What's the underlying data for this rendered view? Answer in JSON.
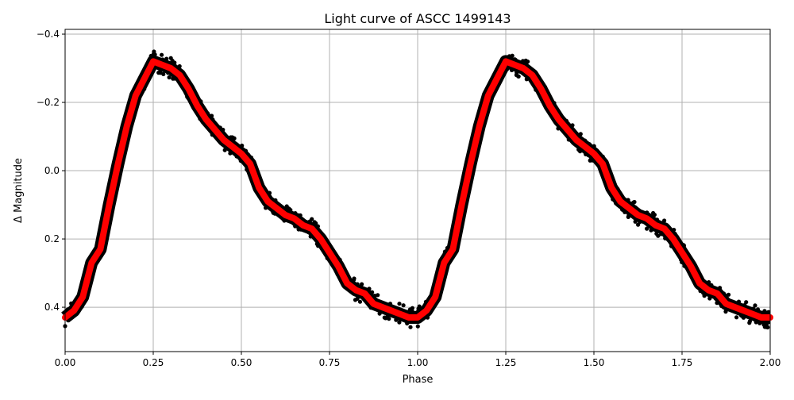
{
  "chart_data": {
    "type": "line",
    "title": "Light curve of ASCC 1499143",
    "xlabel": "Phase",
    "ylabel": "Δ Magnitude",
    "xlim": [
      0,
      2
    ],
    "ylim": [
      0.53,
      -0.414
    ],
    "y_inverted": true,
    "grid": true,
    "xticks": [
      "0.00",
      "0.25",
      "0.50",
      "0.75",
      "1.00",
      "1.25",
      "1.50",
      "1.75",
      "2.00"
    ],
    "xtick_values": [
      0,
      0.25,
      0.5,
      0.75,
      1,
      1.25,
      1.5,
      1.75,
      2
    ],
    "yticks": [
      "−0.4",
      "−0.2",
      "0.0",
      "0.2",
      "0.4"
    ],
    "ytick_values": [
      -0.4,
      -0.2,
      0,
      0.2,
      0.4
    ],
    "series": [
      {
        "kind": "scatter-observations",
        "color": "#000000",
        "description_of_fit": "black points scattered around the model curve, repeated for two phases"
      },
      {
        "kind": "model-curve",
        "color": "#ff0000",
        "phase": [
          0,
          0.025,
          0.05,
          0.075,
          0.1,
          0.125,
          0.15,
          0.175,
          0.2,
          0.225,
          0.25,
          0.275,
          0.3,
          0.325,
          0.35,
          0.375,
          0.4,
          0.425,
          0.45,
          0.475,
          0.5,
          0.525,
          0.55,
          0.575,
          0.6,
          0.625,
          0.65,
          0.675,
          0.7,
          0.725,
          0.75,
          0.775,
          0.8,
          0.825,
          0.85,
          0.875,
          0.9,
          0.925,
          0.95,
          0.975,
          1.0
        ],
        "magnitude": [
          0.43,
          0.41,
          0.37,
          0.27,
          0.23,
          0.1,
          -0.02,
          -0.13,
          -0.22,
          -0.27,
          -0.32,
          -0.31,
          -0.3,
          -0.28,
          -0.24,
          -0.19,
          -0.15,
          -0.12,
          -0.09,
          -0.07,
          -0.05,
          -0.02,
          0.05,
          0.09,
          0.11,
          0.13,
          0.14,
          0.16,
          0.17,
          0.2,
          0.24,
          0.28,
          0.33,
          0.35,
          0.36,
          0.39,
          0.4,
          0.41,
          0.42,
          0.43,
          0.43
        ]
      }
    ]
  }
}
